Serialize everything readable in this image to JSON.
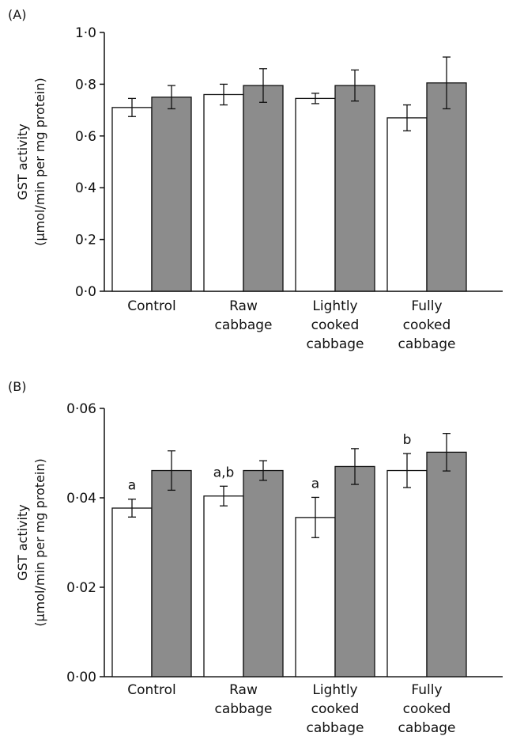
{
  "chart_data": [
    {
      "type": "bar",
      "panel_label": "(A)",
      "ylabel": "GST activity",
      "ylabel_unit": "(µmol/min per mg protein)",
      "ylim": [
        0,
        1.0
      ],
      "yticks": [
        "0·0",
        "0·2",
        "0·4",
        "0·6",
        "0·8",
        "1·0"
      ],
      "categories": [
        [
          "Control"
        ],
        [
          "Raw",
          "cabbage"
        ],
        [
          "Lightly",
          "cooked",
          "cabbage"
        ],
        [
          "Fully",
          "cooked",
          "cabbage"
        ]
      ],
      "colors": {
        "series_1": "#ffffff",
        "series_2": "#8c8c8c"
      },
      "series": [
        {
          "values": [
            0.71,
            0.76,
            0.745,
            0.67
          ],
          "errors": [
            0.035,
            0.04,
            0.02,
            0.05
          ],
          "sig_labels": [
            "",
            "",
            "",
            ""
          ]
        },
        {
          "values": [
            0.75,
            0.795,
            0.795,
            0.805
          ],
          "errors": [
            0.045,
            0.065,
            0.06,
            0.1
          ]
        }
      ]
    },
    {
      "type": "bar",
      "panel_label": "(B)",
      "ylabel": "GST activity",
      "ylabel_unit": "(µmol/min per mg protein)",
      "ylim": [
        0,
        0.06
      ],
      "yticks": [
        "0·00",
        "0·02",
        "0·04",
        "0·06"
      ],
      "categories": [
        [
          "Control"
        ],
        [
          "Raw",
          "cabbage"
        ],
        [
          "Lightly",
          "cooked",
          "cabbage"
        ],
        [
          "Fully",
          "cooked",
          "cabbage"
        ]
      ],
      "colors": {
        "series_1": "#ffffff",
        "series_2": "#8c8c8c"
      },
      "series": [
        {
          "values": [
            0.0377,
            0.0404,
            0.0356,
            0.0461
          ],
          "errors": [
            0.002,
            0.0022,
            0.0045,
            0.0038
          ],
          "sig_labels": [
            "a",
            "a,b",
            "a",
            "b"
          ]
        },
        {
          "values": [
            0.0461,
            0.0461,
            0.047,
            0.0502
          ],
          "errors": [
            0.0044,
            0.0022,
            0.004,
            0.0042
          ]
        }
      ]
    }
  ]
}
